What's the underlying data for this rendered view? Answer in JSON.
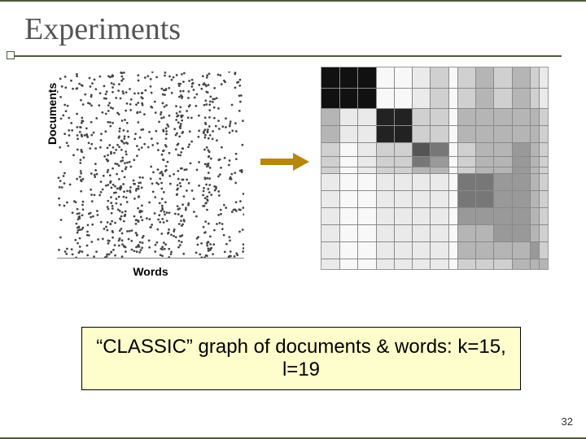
{
  "title": "Experiments",
  "scatter": {
    "ylabel": "Documents",
    "xlabel": "Words",
    "dot_color": "#444444",
    "dot_radius": 0.6,
    "n_points": 900
  },
  "arrow": {
    "shaft_color": "#b8860b",
    "head_color": "#b8860b"
  },
  "heatmap": {
    "rows": 13,
    "cols": 14,
    "row_weights": [
      1.2,
      1.2,
      1,
      1,
      0.8,
      0.6,
      0.4,
      1,
      1,
      1,
      1,
      1,
      0.6
    ],
    "col_weights": [
      1,
      1,
      1,
      1,
      1,
      1,
      1,
      0.5,
      1,
      1,
      1,
      1,
      0.5,
      0.5
    ],
    "values": [
      [
        0,
        0,
        0,
        9,
        9,
        8,
        7,
        9,
        7,
        6,
        7,
        6,
        7,
        8
      ],
      [
        0,
        0,
        0,
        9,
        9,
        8,
        7,
        9,
        7,
        6,
        7,
        6,
        7,
        8
      ],
      [
        6,
        8,
        8,
        1,
        1,
        7,
        7,
        9,
        6,
        6,
        6,
        6,
        6,
        7
      ],
      [
        6,
        8,
        8,
        1,
        1,
        7,
        7,
        9,
        6,
        6,
        6,
        6,
        6,
        7
      ],
      [
        7,
        9,
        8,
        7,
        7,
        3,
        4,
        9,
        7,
        6,
        6,
        5,
        6,
        7
      ],
      [
        7,
        9,
        8,
        7,
        7,
        4,
        5,
        9,
        7,
        6,
        6,
        5,
        6,
        7
      ],
      [
        7,
        9,
        8,
        7,
        7,
        6,
        6,
        9,
        7,
        6,
        6,
        5,
        6,
        7
      ],
      [
        8,
        9,
        9,
        8,
        8,
        8,
        8,
        9,
        4,
        4,
        5,
        5,
        6,
        7
      ],
      [
        8,
        9,
        9,
        8,
        8,
        8,
        8,
        9,
        4,
        4,
        5,
        5,
        6,
        7
      ],
      [
        8,
        9,
        9,
        8,
        8,
        8,
        8,
        9,
        5,
        5,
        5,
        5,
        6,
        7
      ],
      [
        8,
        9,
        9,
        8,
        8,
        8,
        8,
        9,
        6,
        6,
        5,
        5,
        6,
        7
      ],
      [
        8,
        9,
        9,
        8,
        8,
        8,
        8,
        9,
        6,
        6,
        6,
        6,
        5,
        7
      ],
      [
        8,
        9,
        9,
        8,
        8,
        8,
        8,
        9,
        7,
        7,
        7,
        6,
        6,
        6
      ]
    ],
    "grayscale": [
      "#111111",
      "#222222",
      "#333333",
      "#555555",
      "#777777",
      "#999999",
      "#b5b5b5",
      "#d0d0d0",
      "#eaeaea",
      "#f8f8f8"
    ],
    "grid_line_color": "#8a8a8a"
  },
  "caption": "“CLASSIC” graph of documents & words: k=15, l=19",
  "page_number": "32",
  "theme": {
    "accent": "#4d5a3a",
    "caption_bg": "#fdfecb"
  }
}
